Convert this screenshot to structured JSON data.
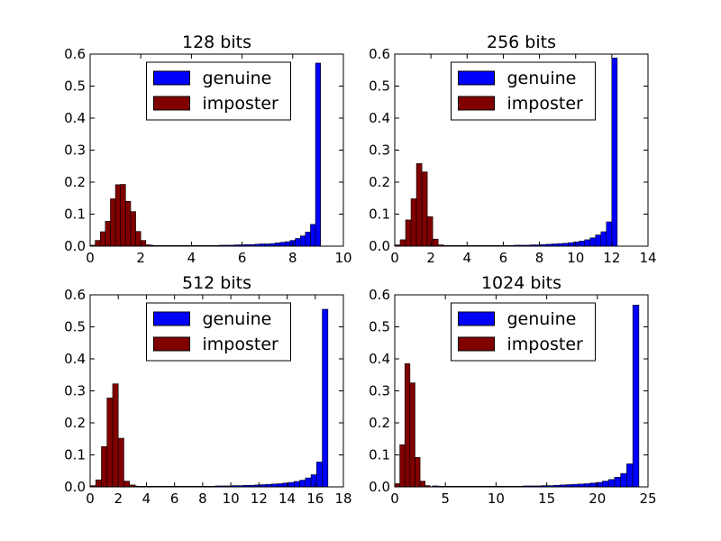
{
  "chart_data": [
    {
      "type": "bar",
      "title": "128 bits",
      "xlim": [
        0,
        10
      ],
      "ylim": [
        0,
        0.6
      ],
      "xticks": [
        "0",
        "2",
        "4",
        "6",
        "8",
        "10"
      ],
      "yticks": [
        "0.0",
        "0.1",
        "0.2",
        "0.3",
        "0.4",
        "0.5",
        "0.6"
      ],
      "legend": {
        "position": "upper-center",
        "entries": [
          "genuine",
          "imposter"
        ]
      },
      "series": [
        {
          "name": "genuine",
          "color": "#0000ff",
          "bin_start": 2.1,
          "bin_width": 0.2,
          "values": [
            0.004,
            0.003,
            0.002,
            0.002,
            0.002,
            0.002,
            0.002,
            0.002,
            0.002,
            0.002,
            0.002,
            0.002,
            0.002,
            0.002,
            0.002,
            0.003,
            0.003,
            0.003,
            0.004,
            0.004,
            0.005,
            0.005,
            0.006,
            0.007,
            0.007,
            0.008,
            0.01,
            0.012,
            0.014,
            0.018,
            0.024,
            0.032,
            0.044,
            0.068,
            0.572
          ]
        },
        {
          "name": "imposter",
          "color": "#800000",
          "bin_start": 0.0,
          "bin_width": 0.2,
          "values": [
            0.003,
            0.018,
            0.045,
            0.078,
            0.148,
            0.192,
            0.193,
            0.14,
            0.108,
            0.046,
            0.018,
            0.004
          ]
        }
      ]
    },
    {
      "type": "bar",
      "title": "256 bits",
      "xlim": [
        0,
        14
      ],
      "ylim": [
        0,
        0.6
      ],
      "xticks": [
        "0",
        "2",
        "4",
        "6",
        "8",
        "10",
        "12",
        "14"
      ],
      "yticks": [
        "0.0",
        "0.1",
        "0.2",
        "0.3",
        "0.4",
        "0.5",
        "0.6"
      ],
      "legend": {
        "position": "upper-center",
        "entries": [
          "genuine",
          "imposter"
        ]
      },
      "series": [
        {
          "name": "genuine",
          "color": "#0000ff",
          "bin_start": 2.4,
          "bin_width": 0.3,
          "values": [
            0.003,
            0.002,
            0.002,
            0.002,
            0.002,
            0.002,
            0.002,
            0.002,
            0.002,
            0.002,
            0.002,
            0.002,
            0.002,
            0.002,
            0.003,
            0.003,
            0.003,
            0.004,
            0.004,
            0.005,
            0.006,
            0.007,
            0.008,
            0.009,
            0.011,
            0.013,
            0.016,
            0.02,
            0.026,
            0.035,
            0.045,
            0.076,
            0.588
          ]
        },
        {
          "name": "imposter",
          "color": "#800000",
          "bin_start": 0.0,
          "bin_width": 0.3,
          "values": [
            0.004,
            0.02,
            0.082,
            0.148,
            0.258,
            0.232,
            0.092,
            0.022,
            0.004
          ]
        }
      ]
    },
    {
      "type": "bar",
      "title": "512 bits",
      "xlim": [
        0,
        18
      ],
      "ylim": [
        0,
        0.6
      ],
      "xticks": [
        "0",
        "2",
        "4",
        "6",
        "8",
        "10",
        "12",
        "14",
        "16",
        "18"
      ],
      "yticks": [
        "0.0",
        "0.1",
        "0.2",
        "0.3",
        "0.4",
        "0.5",
        "0.6"
      ],
      "legend": {
        "position": "upper-center",
        "entries": [
          "genuine",
          "imposter"
        ]
      },
      "series": [
        {
          "name": "genuine",
          "color": "#0000ff",
          "bin_start": 2.9,
          "bin_width": 0.4,
          "values": [
            0.003,
            0.002,
            0.002,
            0.002,
            0.002,
            0.002,
            0.002,
            0.002,
            0.002,
            0.002,
            0.002,
            0.002,
            0.002,
            0.002,
            0.002,
            0.003,
            0.003,
            0.003,
            0.004,
            0.004,
            0.005,
            0.005,
            0.006,
            0.007,
            0.008,
            0.009,
            0.01,
            0.012,
            0.014,
            0.017,
            0.021,
            0.028,
            0.038,
            0.078,
            0.555
          ]
        },
        {
          "name": "imposter",
          "color": "#800000",
          "bin_start": 0.0,
          "bin_width": 0.4,
          "values": [
            0.004,
            0.022,
            0.126,
            0.278,
            0.322,
            0.152,
            0.018,
            0.006
          ]
        }
      ]
    },
    {
      "type": "bar",
      "title": "1024 bits",
      "xlim": [
        0,
        25
      ],
      "ylim": [
        0,
        0.6
      ],
      "xticks": [
        "0",
        "5",
        "10",
        "15",
        "20",
        "25"
      ],
      "yticks": [
        "0.0",
        "0.1",
        "0.2",
        "0.3",
        "0.4",
        "0.5",
        "0.6"
      ],
      "legend": {
        "position": "upper-center",
        "entries": [
          "genuine",
          "imposter"
        ]
      },
      "series": [
        {
          "name": "genuine",
          "color": "#0000ff",
          "bin_start": 3.7,
          "bin_width": 0.6,
          "values": [
            0.003,
            0.002,
            0.002,
            0.002,
            0.002,
            0.002,
            0.002,
            0.002,
            0.002,
            0.002,
            0.002,
            0.002,
            0.002,
            0.002,
            0.002,
            0.003,
            0.003,
            0.003,
            0.004,
            0.004,
            0.005,
            0.006,
            0.007,
            0.008,
            0.009,
            0.01,
            0.012,
            0.014,
            0.018,
            0.023,
            0.03,
            0.042,
            0.072,
            0.568
          ]
        },
        {
          "name": "imposter",
          "color": "#800000",
          "bin_start": 0.0,
          "bin_width": 0.5,
          "values": [
            0.01,
            0.132,
            0.385,
            0.325,
            0.092,
            0.018,
            0.004
          ]
        }
      ]
    }
  ]
}
